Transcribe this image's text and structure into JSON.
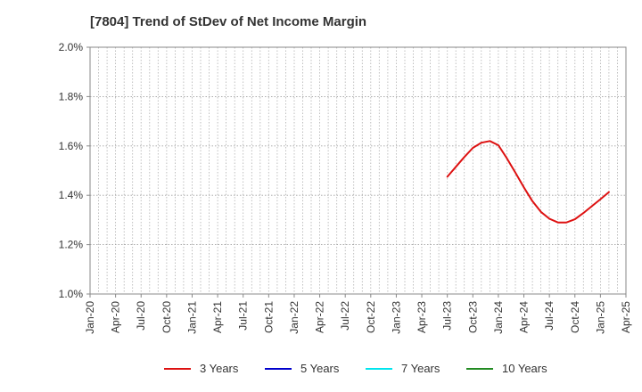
{
  "chart_data": {
    "type": "line",
    "title": "[7804]  Trend of StDev of Net Income Margin",
    "xlabel": "",
    "ylabel": "",
    "ylim": [
      1.0,
      2.0
    ],
    "yticks": [
      "1.0%",
      "1.2%",
      "1.4%",
      "1.6%",
      "1.8%",
      "2.0%"
    ],
    "ytick_values": [
      1.0,
      1.2,
      1.4,
      1.6,
      1.8,
      2.0
    ],
    "xticks": [
      "Jan-20",
      "Apr-20",
      "Jul-20",
      "Oct-20",
      "Jan-21",
      "Apr-21",
      "Jul-21",
      "Oct-21",
      "Jan-22",
      "Apr-22",
      "Jul-22",
      "Oct-22",
      "Jan-23",
      "Apr-23",
      "Jul-23",
      "Oct-23",
      "Jan-24",
      "Apr-24",
      "Jul-24",
      "Oct-24",
      "Jan-25",
      "Apr-25"
    ],
    "x_months_total": 63,
    "grid": true,
    "legend_position": "bottom",
    "series": [
      {
        "name": "3 Years",
        "color": "#dd1111",
        "points": [
          [
            42,
            1.475
          ],
          [
            43,
            1.515
          ],
          [
            44,
            1.555
          ],
          [
            45,
            1.592
          ],
          [
            46,
            1.613
          ],
          [
            47,
            1.62
          ],
          [
            48,
            1.603
          ],
          [
            49,
            1.55
          ],
          [
            50,
            1.492
          ],
          [
            51,
            1.432
          ],
          [
            52,
            1.376
          ],
          [
            53,
            1.333
          ],
          [
            54,
            1.305
          ],
          [
            55,
            1.29
          ],
          [
            56,
            1.29
          ],
          [
            57,
            1.303
          ],
          [
            58,
            1.328
          ],
          [
            59,
            1.356
          ],
          [
            60,
            1.384
          ],
          [
            61,
            1.413
          ]
        ]
      },
      {
        "name": "5 Years",
        "color": "#0000cc",
        "points": []
      },
      {
        "name": "7 Years",
        "color": "#00e5ee",
        "points": []
      },
      {
        "name": "10 Years",
        "color": "#228b22",
        "points": []
      }
    ]
  }
}
